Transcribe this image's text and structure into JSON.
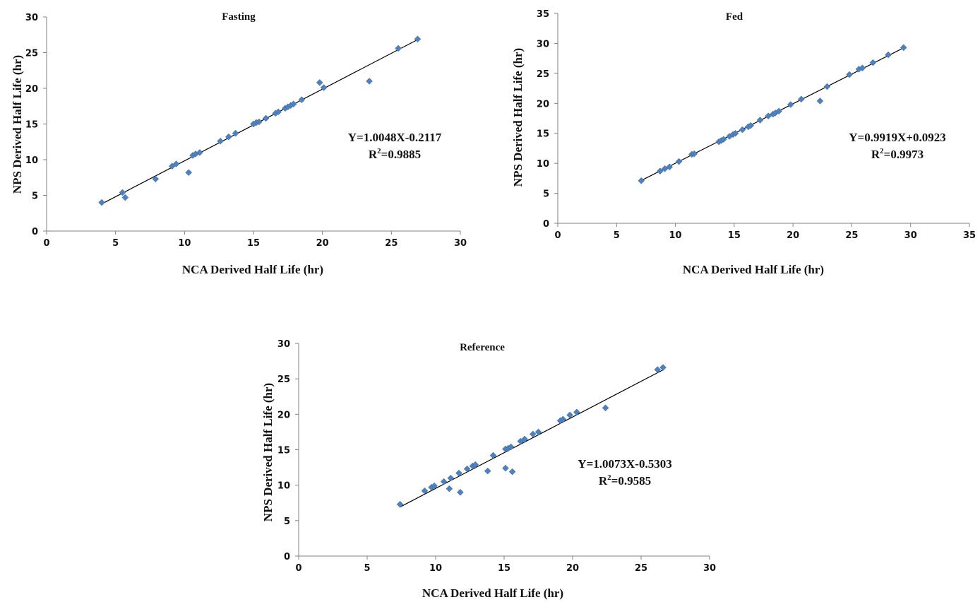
{
  "chart_data": [
    {
      "type": "scatter",
      "title": "Fasting",
      "xlabel": "NCA Derived Half Life (hr)",
      "ylabel": "NPS Derived Half Life (hr)",
      "xlim": [
        0,
        30
      ],
      "ylim": [
        0,
        30
      ],
      "xticks": [
        "0",
        "5",
        "10",
        "15",
        "20",
        "25",
        "30"
      ],
      "yticks": [
        "0",
        "5",
        "10",
        "15",
        "20",
        "25",
        "30"
      ],
      "grid": false,
      "marker_color": "#4F81BD",
      "line_color": "#000000",
      "trendline": {
        "slope": 1.0048,
        "intercept": -0.2117,
        "x_range": [
          4.0,
          26.9
        ]
      },
      "equation_text": "Y=1.0048X-0.2117",
      "r2_prefix": "R",
      "r2_sup": "2",
      "r2_value": "=0.9885",
      "points": [
        {
          "x": 4.0,
          "y": 4.0
        },
        {
          "x": 5.5,
          "y": 5.4
        },
        {
          "x": 5.7,
          "y": 4.7
        },
        {
          "x": 7.9,
          "y": 7.3
        },
        {
          "x": 9.1,
          "y": 9.1
        },
        {
          "x": 9.4,
          "y": 9.4
        },
        {
          "x": 10.3,
          "y": 8.2
        },
        {
          "x": 10.6,
          "y": 10.6
        },
        {
          "x": 10.8,
          "y": 10.8
        },
        {
          "x": 11.1,
          "y": 11.0
        },
        {
          "x": 12.6,
          "y": 12.6
        },
        {
          "x": 13.2,
          "y": 13.2
        },
        {
          "x": 13.7,
          "y": 13.7
        },
        {
          "x": 15.0,
          "y": 15.0
        },
        {
          "x": 15.2,
          "y": 15.2
        },
        {
          "x": 15.4,
          "y": 15.3
        },
        {
          "x": 15.9,
          "y": 15.8
        },
        {
          "x": 16.6,
          "y": 16.5
        },
        {
          "x": 16.8,
          "y": 16.7
        },
        {
          "x": 17.3,
          "y": 17.2
        },
        {
          "x": 17.5,
          "y": 17.4
        },
        {
          "x": 17.7,
          "y": 17.6
        },
        {
          "x": 17.9,
          "y": 17.8
        },
        {
          "x": 18.5,
          "y": 18.4
        },
        {
          "x": 19.8,
          "y": 20.8
        },
        {
          "x": 20.1,
          "y": 20.1
        },
        {
          "x": 23.4,
          "y": 21.0
        },
        {
          "x": 25.5,
          "y": 25.6
        },
        {
          "x": 26.9,
          "y": 26.9
        }
      ]
    },
    {
      "type": "scatter",
      "title": "Fed",
      "xlabel": "NCA Derived Half Life (hr)",
      "ylabel": "NPS Derived Half Life (hr)",
      "xlim": [
        0,
        35
      ],
      "ylim": [
        0,
        35
      ],
      "xticks": [
        "0",
        "5",
        "10",
        "15",
        "20",
        "25",
        "30",
        "35"
      ],
      "yticks": [
        "0",
        "5",
        "10",
        "15",
        "20",
        "25",
        "30",
        "35"
      ],
      "grid": false,
      "marker_color": "#4F81BD",
      "line_color": "#000000",
      "trendline": {
        "slope": 0.9919,
        "intercept": 0.0923,
        "x_range": [
          7.1,
          29.4
        ]
      },
      "equation_text": "Y=0.9919X+0.0923",
      "r2_prefix": "R",
      "r2_sup": "2",
      "r2_value": "=0.9973",
      "points": [
        {
          "x": 7.1,
          "y": 7.1
        },
        {
          "x": 8.7,
          "y": 8.7
        },
        {
          "x": 9.1,
          "y": 9.1
        },
        {
          "x": 9.5,
          "y": 9.4
        },
        {
          "x": 10.3,
          "y": 10.3
        },
        {
          "x": 11.4,
          "y": 11.5
        },
        {
          "x": 11.6,
          "y": 11.6
        },
        {
          "x": 13.7,
          "y": 13.6
        },
        {
          "x": 13.9,
          "y": 13.8
        },
        {
          "x": 14.1,
          "y": 14.0
        },
        {
          "x": 14.6,
          "y": 14.5
        },
        {
          "x": 14.9,
          "y": 14.8
        },
        {
          "x": 15.1,
          "y": 15.0
        },
        {
          "x": 15.7,
          "y": 15.6
        },
        {
          "x": 16.2,
          "y": 16.1
        },
        {
          "x": 16.4,
          "y": 16.3
        },
        {
          "x": 17.2,
          "y": 17.2
        },
        {
          "x": 17.9,
          "y": 17.9
        },
        {
          "x": 18.3,
          "y": 18.2
        },
        {
          "x": 18.5,
          "y": 18.4
        },
        {
          "x": 18.8,
          "y": 18.7
        },
        {
          "x": 19.8,
          "y": 19.8
        },
        {
          "x": 20.7,
          "y": 20.7
        },
        {
          "x": 22.3,
          "y": 20.4
        },
        {
          "x": 22.9,
          "y": 22.8
        },
        {
          "x": 24.8,
          "y": 24.8
        },
        {
          "x": 25.6,
          "y": 25.7
        },
        {
          "x": 25.9,
          "y": 25.9
        },
        {
          "x": 26.8,
          "y": 26.8
        },
        {
          "x": 28.1,
          "y": 28.1
        },
        {
          "x": 29.4,
          "y": 29.3
        }
      ]
    },
    {
      "type": "scatter",
      "title": "Reference",
      "xlabel": "NCA Derived Half Life (hr)",
      "ylabel": "NPS Derived Half Life (hr)",
      "xlim": [
        0,
        30
      ],
      "ylim": [
        0,
        30
      ],
      "xticks": [
        "0",
        "5",
        "10",
        "15",
        "20",
        "25",
        "30"
      ],
      "yticks": [
        "0",
        "5",
        "10",
        "15",
        "20",
        "25",
        "30"
      ],
      "grid": false,
      "marker_color": "#4F81BD",
      "line_color": "#000000",
      "trendline": {
        "slope": 1.0073,
        "intercept": -0.5303,
        "x_range": [
          7.4,
          26.6
        ]
      },
      "equation_text": "Y=1.0073X-0.5303",
      "r2_prefix": "R",
      "r2_sup": "2",
      "r2_value": "=0.9585",
      "points": [
        {
          "x": 7.4,
          "y": 7.3
        },
        {
          "x": 9.2,
          "y": 9.2
        },
        {
          "x": 9.7,
          "y": 9.7
        },
        {
          "x": 9.9,
          "y": 9.9
        },
        {
          "x": 10.6,
          "y": 10.5
        },
        {
          "x": 11.0,
          "y": 9.5
        },
        {
          "x": 11.1,
          "y": 11.0
        },
        {
          "x": 11.7,
          "y": 11.7
        },
        {
          "x": 11.8,
          "y": 9.0
        },
        {
          "x": 12.3,
          "y": 12.3
        },
        {
          "x": 12.7,
          "y": 12.7
        },
        {
          "x": 12.9,
          "y": 12.9
        },
        {
          "x": 13.8,
          "y": 12.0
        },
        {
          "x": 14.2,
          "y": 14.2
        },
        {
          "x": 15.1,
          "y": 12.4
        },
        {
          "x": 15.1,
          "y": 15.1
        },
        {
          "x": 15.3,
          "y": 15.2
        },
        {
          "x": 15.5,
          "y": 15.4
        },
        {
          "x": 15.6,
          "y": 11.9
        },
        {
          "x": 16.2,
          "y": 16.2
        },
        {
          "x": 16.5,
          "y": 16.5
        },
        {
          "x": 17.1,
          "y": 17.2
        },
        {
          "x": 17.5,
          "y": 17.5
        },
        {
          "x": 19.1,
          "y": 19.1
        },
        {
          "x": 19.3,
          "y": 19.3
        },
        {
          "x": 19.8,
          "y": 19.9
        },
        {
          "x": 20.3,
          "y": 20.3
        },
        {
          "x": 22.4,
          "y": 20.9
        },
        {
          "x": 26.2,
          "y": 26.3
        },
        {
          "x": 26.6,
          "y": 26.6
        }
      ]
    }
  ]
}
